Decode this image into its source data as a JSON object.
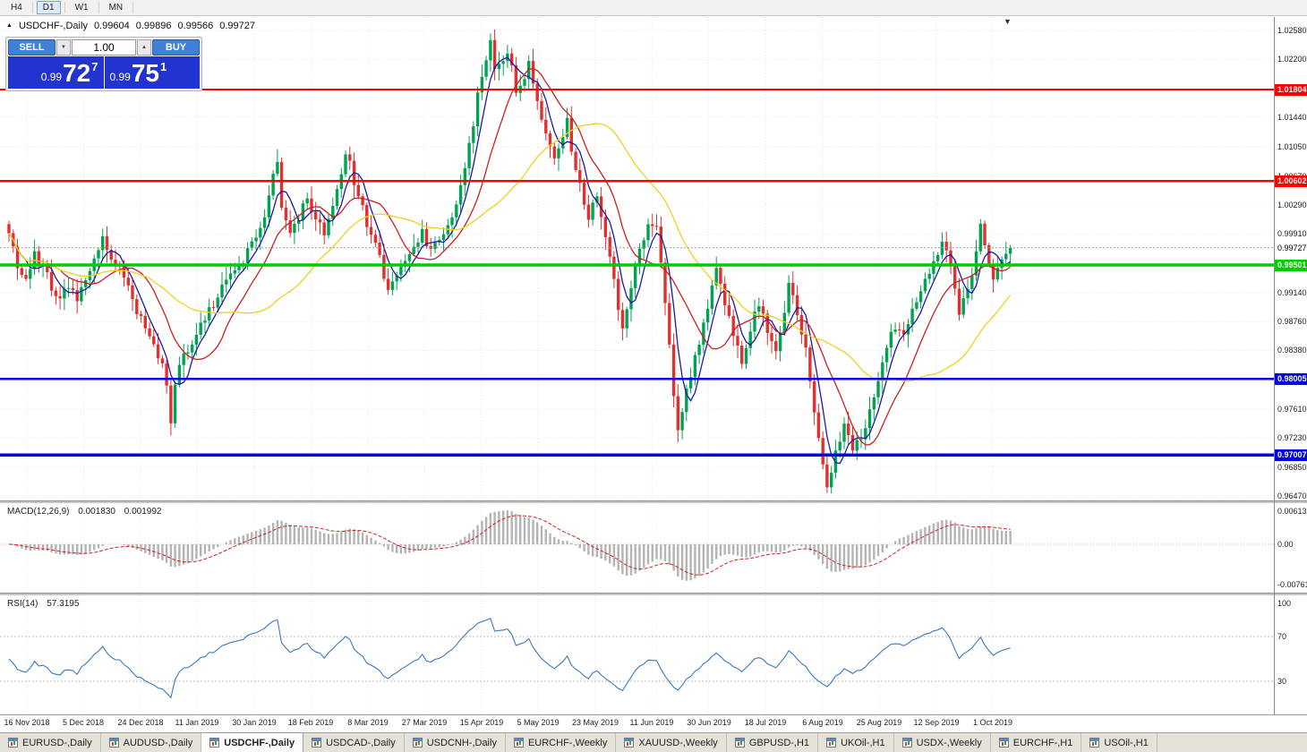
{
  "timeframe_toolbar": {
    "buttons": [
      "H4",
      "D1",
      "W1",
      "MN"
    ],
    "active": "D1"
  },
  "chart_header": {
    "direction_icon": "▲",
    "symbol": "USDCHF-,Daily",
    "open": "0.99604",
    "high": "0.99896",
    "low": "0.99566",
    "close": "0.99727"
  },
  "one_click": {
    "sell_label": "SELL",
    "buy_label": "BUY",
    "volume": "1.00",
    "volume_down_icon": "▼",
    "volume_up_icon": "▲",
    "sell_price": {
      "prefix": "0.99",
      "big": "72",
      "sup": "7"
    },
    "buy_price": {
      "prefix": "0.99",
      "big": "75",
      "sup": "1"
    }
  },
  "chart_shift_icon": "▼",
  "colors": {
    "candle_up": "#00a352",
    "candle_down": "#e03030",
    "ma_fast": "#1a1aa6",
    "ma_mid": "#cc2020",
    "ma_slow": "#f0d020",
    "macd_hist": "#b4b4b4",
    "macd_signal": "#d02020",
    "rsi_line": "#3a78c2",
    "level_red": "#ff0000",
    "level_green": "#00cc00",
    "level_blue": "#0000e8"
  },
  "chart_data": {
    "type": "candlestick",
    "title": "USDCHF-,Daily",
    "ohlc_header": [
      0.99604,
      0.99896,
      0.99566,
      0.99727
    ],
    "y_axis": {
      "min": 0.9647,
      "max": 1.0258,
      "ticks": [
        "1.02580",
        "1.02200",
        "1.01440",
        "1.01050",
        "1.00670",
        "1.00290",
        "0.99910",
        "0.99140",
        "0.98760",
        "0.98380",
        "0.97610",
        "0.97230",
        "0.96850",
        "0.96470"
      ]
    },
    "x_labels": [
      "16 Nov 2018",
      "5 Dec 2018",
      "24 Dec 2018",
      "11 Jan 2019",
      "30 Jan 2019",
      "18 Feb 2019",
      "8 Mar 2019",
      "27 Mar 2019",
      "15 Apr 2019",
      "5 May 2019",
      "23 May 2019",
      "11 Jun 2019",
      "30 Jun 2019",
      "18 Jul 2019",
      "6 Aug 2019",
      "25 Aug 2019",
      "12 Sep 2019",
      "1 Oct 2019"
    ],
    "levels": [
      {
        "price": 1.01804,
        "label": "1.01804",
        "color": "#ff0000",
        "width": 2
      },
      {
        "price": 1.00602,
        "label": "1.00602",
        "color": "#ff0000",
        "width": 2.5
      },
      {
        "price": 0.99501,
        "label": "0.99501",
        "color": "#00cc00",
        "width": 3.5
      },
      {
        "price": 0.98005,
        "label": "0.98005",
        "color": "#0000e8",
        "width": 2.5
      },
      {
        "price": 0.97007,
        "label": "0.97007",
        "color": "#0000e8",
        "width": 3.5
      }
    ],
    "current_price": {
      "value": 0.99727,
      "label": "0.99727"
    },
    "candle_count": 236,
    "close_path": [
      [
        0,
        0.999
      ],
      [
        2,
        0.9952
      ],
      [
        4,
        0.993
      ],
      [
        6,
        0.9965
      ],
      [
        9,
        0.9935
      ],
      [
        12,
        0.99
      ],
      [
        14,
        0.9925
      ],
      [
        16,
        0.9902
      ],
      [
        19,
        0.9945
      ],
      [
        22,
        0.9985
      ],
      [
        24,
        0.9958
      ],
      [
        26,
        0.9945
      ],
      [
        28,
        0.992
      ],
      [
        30,
        0.989
      ],
      [
        32,
        0.9868
      ],
      [
        34,
        0.9845
      ],
      [
        36,
        0.9822
      ],
      [
        37,
        0.9795
      ],
      [
        38,
        0.974
      ],
      [
        39,
        0.9792
      ],
      [
        41,
        0.9832
      ],
      [
        44,
        0.9858
      ],
      [
        47,
        0.9888
      ],
      [
        50,
        0.9918
      ],
      [
        53,
        0.9942
      ],
      [
        56,
        0.9968
      ],
      [
        58,
        0.9988
      ],
      [
        60,
        1.0018
      ],
      [
        62,
        1.0068
      ],
      [
        63,
        1.0085
      ],
      [
        64,
        1.0032
      ],
      [
        66,
        0.9992
      ],
      [
        68,
        1.0015
      ],
      [
        70,
        1.0038
      ],
      [
        72,
        1.001
      ],
      [
        74,
        0.9988
      ],
      [
        76,
        1.0028
      ],
      [
        78,
        1.0072
      ],
      [
        79,
        1.0098
      ],
      [
        80,
        1.008
      ],
      [
        81,
        1.0058
      ],
      [
        83,
        1.0022
      ],
      [
        85,
        0.9992
      ],
      [
        87,
        0.9962
      ],
      [
        89,
        0.9915
      ],
      [
        92,
        0.9945
      ],
      [
        95,
        0.9978
      ],
      [
        97,
        0.9992
      ],
      [
        99,
        0.9965
      ],
      [
        101,
        0.9988
      ],
      [
        104,
        1.0012
      ],
      [
        106,
        1.0052
      ],
      [
        108,
        1.0105
      ],
      [
        110,
        1.017
      ],
      [
        112,
        1.0215
      ],
      [
        113,
        1.0242
      ],
      [
        114,
        1.0205
      ],
      [
        116,
        1.0218
      ],
      [
        117,
        1.0232
      ],
      [
        119,
        1.018
      ],
      [
        121,
        1.0192
      ],
      [
        122,
        1.0215
      ],
      [
        124,
        1.0162
      ],
      [
        126,
        1.0125
      ],
      [
        128,
        1.0092
      ],
      [
        130,
        1.0122
      ],
      [
        131,
        1.0142
      ],
      [
        132,
        1.0092
      ],
      [
        134,
        1.0055
      ],
      [
        136,
        1.0012
      ],
      [
        138,
        1.0045
      ],
      [
        140,
        0.999
      ],
      [
        142,
        0.993
      ],
      [
        144,
        0.9865
      ],
      [
        146,
        0.9922
      ],
      [
        148,
        0.9975
      ],
      [
        150,
        1.0002
      ],
      [
        152,
        0.9998
      ],
      [
        154,
        0.99
      ],
      [
        156,
        0.978
      ],
      [
        157,
        0.9728
      ],
      [
        159,
        0.9782
      ],
      [
        161,
        0.983
      ],
      [
        163,
        0.987
      ],
      [
        165,
        0.992
      ],
      [
        166,
        0.9948
      ],
      [
        168,
        0.99
      ],
      [
        170,
        0.986
      ],
      [
        172,
        0.9825
      ],
      [
        174,
        0.9868
      ],
      [
        176,
        0.9898
      ],
      [
        178,
        0.9865
      ],
      [
        180,
        0.9835
      ],
      [
        182,
        0.9885
      ],
      [
        183,
        0.9925
      ],
      [
        185,
        0.9885
      ],
      [
        187,
        0.984
      ],
      [
        189,
        0.976
      ],
      [
        191,
        0.969
      ],
      [
        192,
        0.9655
      ],
      [
        194,
        0.9705
      ],
      [
        196,
        0.9735
      ],
      [
        198,
        0.9705
      ],
      [
        200,
        0.9722
      ],
      [
        202,
        0.9762
      ],
      [
        204,
        0.98
      ],
      [
        206,
        0.984
      ],
      [
        208,
        0.9872
      ],
      [
        210,
        0.9852
      ],
      [
        212,
        0.989
      ],
      [
        214,
        0.9922
      ],
      [
        216,
        0.9945
      ],
      [
        218,
        0.9962
      ],
      [
        219,
        0.9982
      ],
      [
        221,
        0.9945
      ],
      [
        223,
        0.9888
      ],
      [
        225,
        0.9918
      ],
      [
        227,
        0.9962
      ],
      [
        228,
        1.0008
      ],
      [
        230,
        0.9955
      ],
      [
        231,
        0.9938
      ],
      [
        233,
        0.9958
      ],
      [
        235,
        0.99727
      ]
    ],
    "moving_averages": [
      {
        "period": 5,
        "color_key": "ma_fast"
      },
      {
        "period": 13,
        "color_key": "ma_mid"
      },
      {
        "period": 34,
        "color_key": "ma_slow"
      }
    ],
    "indicators": {
      "macd": {
        "name": "MACD(12,26,9)",
        "value_main": "0.001830",
        "value_signal": "0.001992",
        "fast": 12,
        "slow": 26,
        "signal": 9,
        "y_ticks": [
          {
            "v": 0.00613,
            "label": "0.00613"
          },
          {
            "v": 0,
            "label": "0.00"
          },
          {
            "v": -0.00761,
            "label": "-0.00761"
          }
        ]
      },
      "rsi": {
        "name": "RSI(14)",
        "value": "57.3195",
        "period": 14,
        "y_ticks": [
          {
            "v": 100,
            "label": "100"
          },
          {
            "v": 70,
            "label": "70"
          },
          {
            "v": 30,
            "label": "30"
          }
        ],
        "level_lines": [
          70,
          30
        ]
      }
    }
  },
  "tabs": {
    "active_index": 2,
    "items": [
      "EURUSD-,Daily",
      "AUDUSD-,Daily",
      "USDCHF-,Daily",
      "USDCAD-,Daily",
      "USDCNH-,Daily",
      "EURCHF-,Weekly",
      "XAUUSD-,Weekly",
      "GBPUSD-,H1",
      "UKOil-,H1",
      "USDX-,Weekly",
      "EURCHF-,H1",
      "USOil-,H1"
    ]
  }
}
